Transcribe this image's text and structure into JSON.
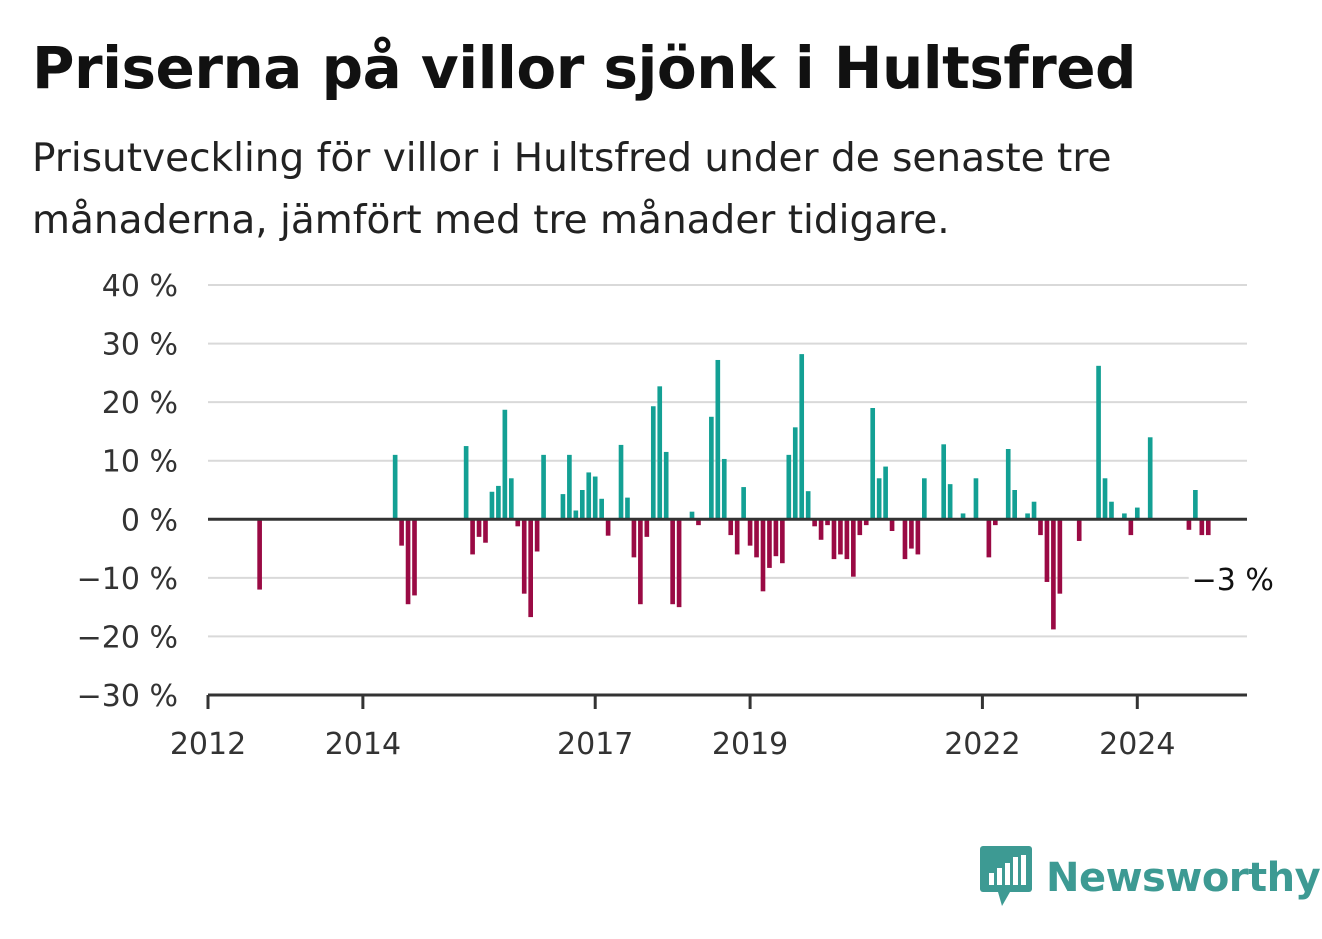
{
  "header": {
    "title": "Priserna på villor sjönk i Hultsfred",
    "subtitle": "Prisutveckling för villor i Hultsfred under de senaste tre månaderna, jämfört med tre månader tidigare."
  },
  "brand": {
    "name": "Newsworthy",
    "icon": "bar-chart-icon",
    "color": "#3d9a93"
  },
  "colors": {
    "positive": "#13a094",
    "negative": "#9a0a44",
    "grid": "#d9d9d9",
    "axis": "#333333"
  },
  "chart_data": {
    "type": "bar",
    "title": "Priserna på villor sjönk i Hultsfred",
    "subtitle": "Prisutveckling för villor i Hultsfred under de senaste tre månaderna, jämfört med tre månader tidigare.",
    "xlabel": "",
    "ylabel": "",
    "x_axis": {
      "type": "date",
      "range": [
        "2012-01",
        "2025-06"
      ],
      "tick_labels": [
        "2012",
        "2014",
        "2017",
        "2019",
        "2022",
        "2024"
      ]
    },
    "y_axis": {
      "range": [
        -30,
        40
      ],
      "tick_values": [
        -30,
        -20,
        -10,
        0,
        10,
        20,
        30,
        40
      ],
      "tick_labels": [
        "−30 %",
        "−20 %",
        "−10 %",
        "0 %",
        "10 %",
        "20 %",
        "30 %",
        "40 %"
      ]
    },
    "grid": true,
    "legend": "none",
    "annotation": {
      "text": "−3 %",
      "date": "2025-01",
      "value": -3
    },
    "series": [
      {
        "points": [
          [
            "2012-09",
            -12
          ],
          [
            "2014-06",
            11
          ],
          [
            "2014-07",
            -4.5
          ],
          [
            "2014-08",
            -14.5
          ],
          [
            "2014-09",
            -13
          ],
          [
            "2015-05",
            12.5
          ],
          [
            "2015-06",
            -6
          ],
          [
            "2015-07",
            -3
          ],
          [
            "2015-08",
            -4
          ],
          [
            "2015-09",
            4.7
          ],
          [
            "2015-10",
            5.7
          ],
          [
            "2015-11",
            18.7
          ],
          [
            "2015-12",
            7
          ],
          [
            "2016-01",
            -1.2
          ],
          [
            "2016-02",
            -12.7
          ],
          [
            "2016-03",
            -16.7
          ],
          [
            "2016-04",
            -5.5
          ],
          [
            "2016-05",
            11
          ],
          [
            "2016-08",
            4.3
          ],
          [
            "2016-09",
            11
          ],
          [
            "2016-10",
            1.5
          ],
          [
            "2016-11",
            5
          ],
          [
            "2016-12",
            8
          ],
          [
            "2017-01",
            7.3
          ],
          [
            "2017-02",
            3.5
          ],
          [
            "2017-03",
            -2.8
          ],
          [
            "2017-05",
            12.7
          ],
          [
            "2017-06",
            3.7
          ],
          [
            "2017-07",
            -6.5
          ],
          [
            "2017-08",
            -14.5
          ],
          [
            "2017-09",
            -3
          ],
          [
            "2017-10",
            19.3
          ],
          [
            "2017-11",
            22.7
          ],
          [
            "2017-12",
            11.5
          ],
          [
            "2018-01",
            -14.5
          ],
          [
            "2018-02",
            -15
          ],
          [
            "2018-04",
            1.3
          ],
          [
            "2018-05",
            -1
          ],
          [
            "2018-07",
            17.5
          ],
          [
            "2018-08",
            27.2
          ],
          [
            "2018-09",
            10.3
          ],
          [
            "2018-10",
            -2.7
          ],
          [
            "2018-11",
            -6
          ],
          [
            "2018-12",
            5.5
          ],
          [
            "2019-01",
            -4.5
          ],
          [
            "2019-02",
            -6.5
          ],
          [
            "2019-03",
            -12.3
          ],
          [
            "2019-04",
            -8.3
          ],
          [
            "2019-05",
            -6.3
          ],
          [
            "2019-06",
            -7.5
          ],
          [
            "2019-07",
            11
          ],
          [
            "2019-08",
            15.7
          ],
          [
            "2019-09",
            28.2
          ],
          [
            "2019-10",
            4.8
          ],
          [
            "2019-11",
            -1.2
          ],
          [
            "2019-12",
            -3.5
          ],
          [
            "2020-01",
            -1
          ],
          [
            "2020-02",
            -6.8
          ],
          [
            "2020-03",
            -6
          ],
          [
            "2020-04",
            -6.8
          ],
          [
            "2020-05",
            -9.8
          ],
          [
            "2020-06",
            -2.7
          ],
          [
            "2020-07",
            -1
          ],
          [
            "2020-08",
            19
          ],
          [
            "2020-09",
            7
          ],
          [
            "2020-10",
            9
          ],
          [
            "2020-11",
            -2
          ],
          [
            "2021-01",
            -6.8
          ],
          [
            "2021-02",
            -5
          ],
          [
            "2021-03",
            -6
          ],
          [
            "2021-04",
            7
          ],
          [
            "2021-07",
            12.8
          ],
          [
            "2021-08",
            6
          ],
          [
            "2021-10",
            1
          ],
          [
            "2021-12",
            7
          ],
          [
            "2022-02",
            -6.5
          ],
          [
            "2022-03",
            -1
          ],
          [
            "2022-05",
            12
          ],
          [
            "2022-06",
            5
          ],
          [
            "2022-08",
            1
          ],
          [
            "2022-09",
            3
          ],
          [
            "2022-10",
            -2.7
          ],
          [
            "2022-11",
            -10.7
          ],
          [
            "2022-12",
            -18.8
          ],
          [
            "2023-01",
            -12.7
          ],
          [
            "2023-04",
            -3.7
          ],
          [
            "2023-07",
            26.2
          ],
          [
            "2023-08",
            7
          ],
          [
            "2023-09",
            3
          ],
          [
            "2023-11",
            1
          ],
          [
            "2023-12",
            -2.7
          ],
          [
            "2024-01",
            2
          ],
          [
            "2024-03",
            14
          ],
          [
            "2024-09",
            -1.8
          ],
          [
            "2024-10",
            5
          ],
          [
            "2024-11",
            -2.7
          ],
          [
            "2024-12",
            -2.7
          ]
        ]
      }
    ]
  }
}
